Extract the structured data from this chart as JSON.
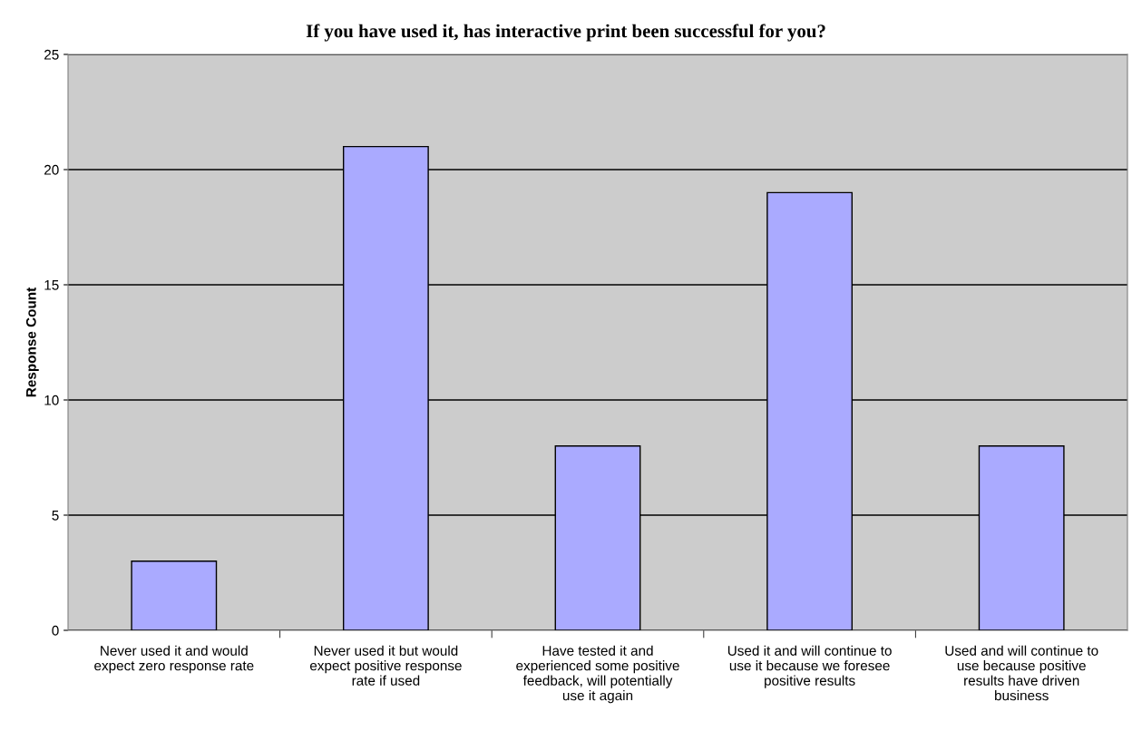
{
  "chart_data": {
    "type": "bar",
    "title": "If you have used it, has interactive print been successful for you?",
    "ylabel": "Response Count",
    "categories": [
      "Never used it and would\nexpect zero response rate",
      "Never used it but would\nexpect positive response\nrate if used",
      "Have tested it and\nexperienced some positive\nfeedback, will potentially\nuse it again",
      "Used it and will continue to\nuse it because we foresee\npositive results",
      "Used and will continue to\nuse because positive\nresults have driven\nbusiness"
    ],
    "values": [
      3,
      21,
      8,
      19,
      8
    ],
    "color": "#aaaaff",
    "ylim": [
      0,
      25
    ],
    "yticks": [
      0,
      5,
      10,
      15,
      20,
      25
    ],
    "grid": "y"
  }
}
